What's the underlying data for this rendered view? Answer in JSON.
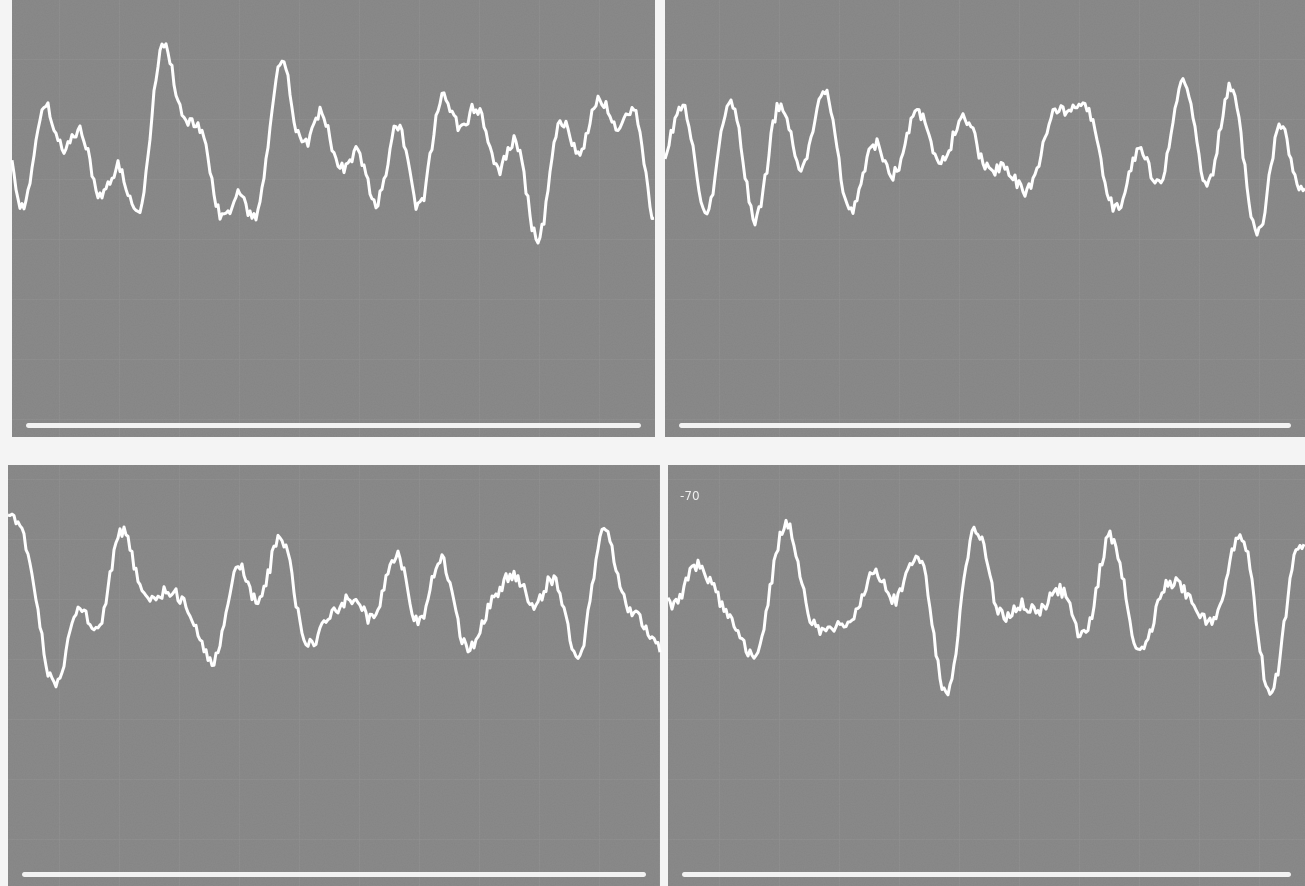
{
  "annotation": "-70"
}
